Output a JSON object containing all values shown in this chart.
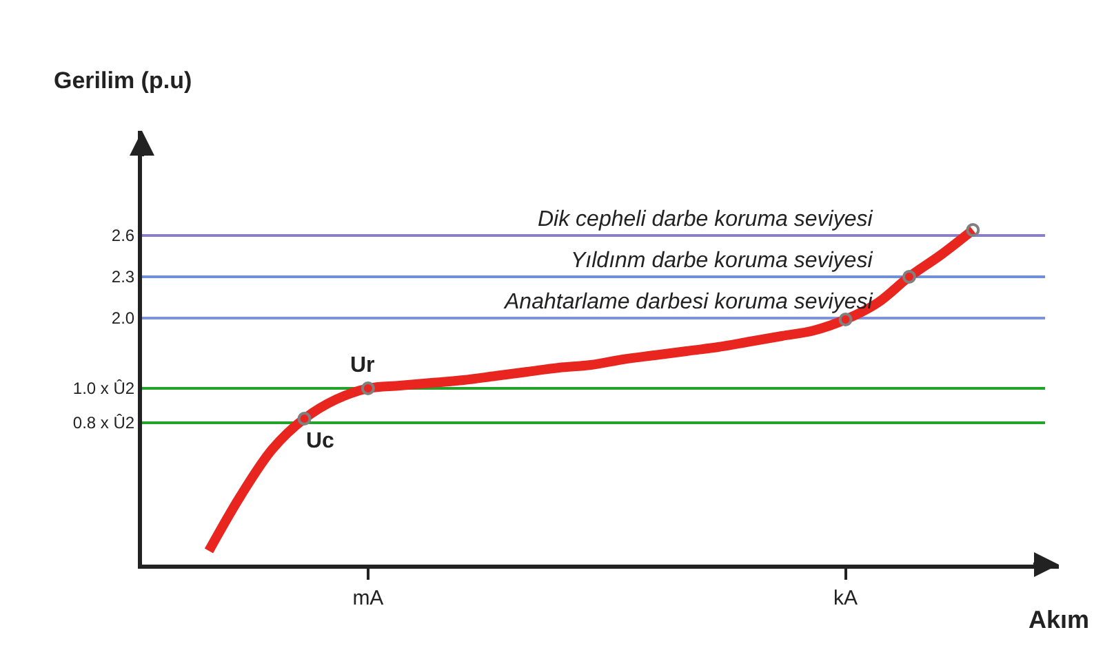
{
  "chart_data": {
    "type": "line",
    "ylabel": "Gerilim (p.u)",
    "xlabel": "Akım",
    "categories": [
      null,
      null,
      null,
      null,
      null,
      "mA",
      null,
      null,
      null,
      null,
      null,
      null,
      null,
      null,
      null,
      null,
      null,
      null,
      null,
      null,
      "kA",
      null,
      null,
      null,
      null
    ],
    "ylim": [
      0.21,
      3.36
    ],
    "yticks": [
      {
        "value": 1.24,
        "label": "0.8 x Û2"
      },
      {
        "value": 1.49,
        "label": "1.0 x Û2"
      },
      {
        "value": 2.0,
        "label": "2.0"
      },
      2.3,
      2.6
    ],
    "grid": false,
    "series": [
      {
        "color": "#e8261f",
        "marker": "none",
        "values": [
          0.31,
          0.71,
          1.05,
          1.27,
          1.41,
          1.49,
          1.51,
          1.53,
          1.55,
          1.58,
          1.61,
          1.64,
          1.66,
          1.7,
          1.73,
          1.76,
          1.79,
          1.83,
          1.87,
          1.91,
          1.99,
          2.11,
          2.3,
          2.46,
          2.64
        ]
      },
      {
        "type": "scatter",
        "color": "#808080",
        "marker": "circle",
        "values": [
          null,
          null,
          null,
          1.27,
          null,
          1.49,
          null,
          null,
          null,
          null,
          null,
          null,
          null,
          null,
          null,
          null,
          null,
          null,
          null,
          null,
          1.99,
          null,
          2.3,
          null,
          2.64
        ]
      }
    ],
    "ref_lines": [
      {
        "axis": "y",
        "value": 2.6,
        "label": "Dik cepheli darbe koruma seviyesi",
        "color": "#8a7fc8"
      },
      {
        "axis": "y",
        "value": 2.3,
        "label": "Yıldınm darbe koruma seviyesi",
        "color": "#6f8fd8"
      },
      {
        "axis": "y",
        "value": 2.0,
        "label": "Anahtarlame darbesi koruma seviyesi",
        "color": "#7f93d8"
      },
      {
        "axis": "y",
        "value": 1.49,
        "color": "#22a32a"
      },
      {
        "axis": "y",
        "value": 1.24,
        "color": "#22a32a"
      }
    ],
    "annotations": [
      {
        "text": "Ur",
        "y": 1.49
      },
      {
        "text": "Uc",
        "y": 1.27
      }
    ]
  }
}
